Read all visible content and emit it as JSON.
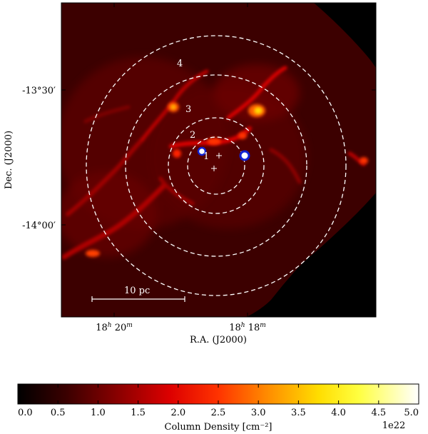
{
  "axes": {
    "xlabel": "R.A. (J2000)",
    "ylabel": "Dec. (J2000)",
    "xticks": [
      {
        "h": "18",
        "m": "20"
      },
      {
        "h": "18",
        "m": "18"
      }
    ],
    "yticks": [
      "-13°30′",
      "-14°00′"
    ]
  },
  "annotations": {
    "ring_labels": [
      "1",
      "2",
      "3",
      "4"
    ],
    "scale_bar_label": "10 pc"
  },
  "colorbar": {
    "label": "Column Density [cm⁻²]",
    "ticks": [
      "0.0",
      "0.5",
      "1.0",
      "1.5",
      "2.0",
      "2.5",
      "3.0",
      "3.5",
      "4.0",
      "4.5",
      "5.0"
    ],
    "offset_label": "1e22",
    "range": [
      0.0,
      5.0
    ],
    "colormap": [
      "#000000",
      "#5a0000",
      "#b00000",
      "#ff1a00",
      "#ff8a00",
      "#ffff00",
      "#ffffff"
    ]
  },
  "colors": {
    "rings": "#ffffff",
    "sources": "#1020d0"
  }
}
